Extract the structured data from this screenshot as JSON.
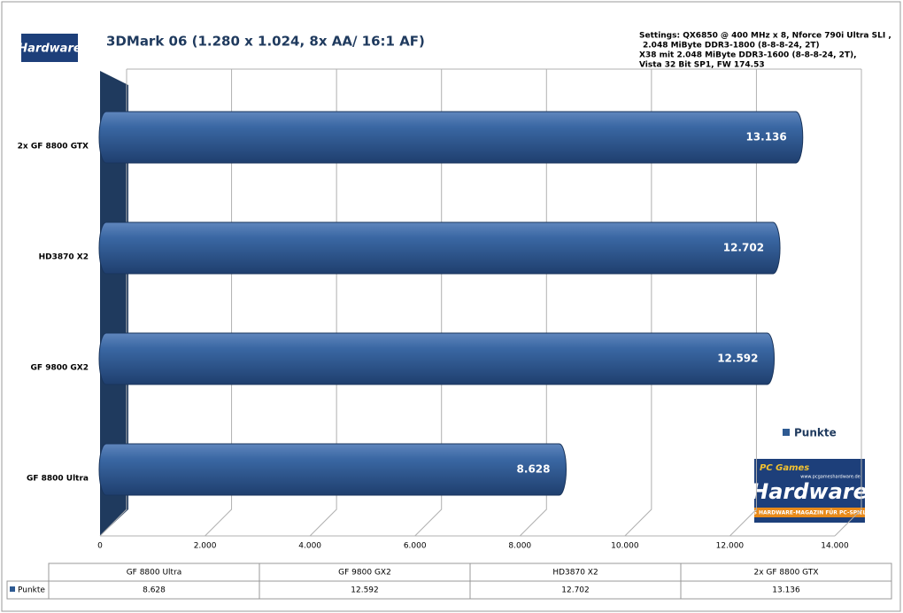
{
  "chart_data": {
    "type": "bar",
    "orientation": "horizontal",
    "title": "3DMark 06 (1.280 x 1.024, 8x AA/ 16:1 AF)",
    "annotation": [
      "Settings: QX6850 @ 400 MHz x 8, Nforce 790i Ultra SLI ,",
      "2.048 MiByte DDR3-1800 (8-8-8-24, 2T)",
      "X38 mit 2.048 MiByte DDR3-1600 (8-8-8-24, 2T),",
      "Vista 32 Bit SP1, FW 174.53"
    ],
    "categories": [
      "GF 8800 Ultra",
      "GF 9800 GX2",
      "HD3870 X2",
      "2x GF 8800 GTX"
    ],
    "series": [
      {
        "name": "Punkte",
        "color": "#2e5a92",
        "values": [
          8628,
          12592,
          12702,
          13136
        ],
        "value_labels": [
          "8.628",
          "12.592",
          "12.702",
          "13.136"
        ]
      }
    ],
    "xlim": [
      0,
      14000
    ],
    "xticks": [
      0,
      {
        "value": 2000,
        "label": "2.000"
      },
      {
        "value": 4000,
        "label": "4.000"
      },
      {
        "value": 6000,
        "label": "6.000"
      },
      {
        "value": 8000,
        "label": "8.000"
      },
      {
        "value": 10000,
        "label": "10.000"
      },
      {
        "value": 12000,
        "label": "12.000"
      },
      {
        "value": 14000,
        "label": "14.000"
      }
    ],
    "grid": true,
    "legend": "right"
  },
  "logo": {
    "brand": "PC Games",
    "name": "Hardware",
    "url": "www.pcgameshardware.de",
    "tagline": "DAS HARDWARE-MAGAZIN FÜR PC-SPIELER"
  }
}
